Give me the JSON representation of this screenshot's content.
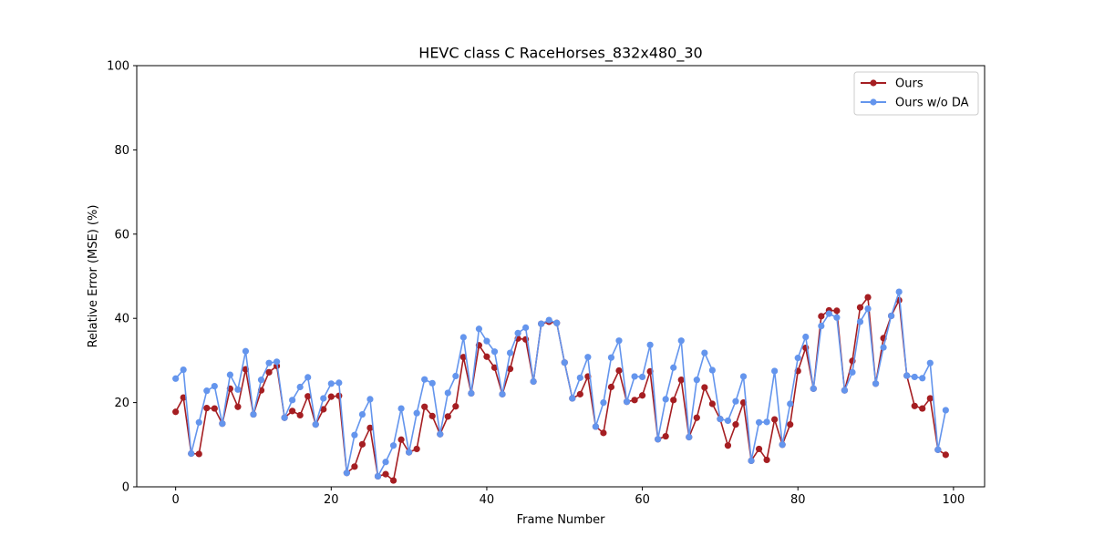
{
  "chart_data": {
    "type": "line",
    "title": "HEVC class C RaceHorses_832x480_30",
    "xlabel": "Frame Number",
    "ylabel": "Relative Error (MSE) (%)",
    "xlim": [
      -5,
      104
    ],
    "ylim": [
      0,
      100
    ],
    "xticks": [
      0,
      20,
      40,
      60,
      80,
      100
    ],
    "yticks": [
      0,
      20,
      40,
      60,
      80,
      100
    ],
    "xtick_labels": [
      "0",
      "20",
      "40",
      "60",
      "80",
      "100"
    ],
    "ytick_labels": [
      "0",
      "20",
      "40",
      "60",
      "80",
      "100"
    ],
    "grid": false,
    "legend_position": "top-right",
    "x": [
      0,
      1,
      2,
      3,
      4,
      5,
      6,
      7,
      8,
      9,
      10,
      11,
      12,
      13,
      14,
      15,
      16,
      17,
      18,
      19,
      20,
      21,
      22,
      23,
      24,
      25,
      26,
      27,
      28,
      29,
      30,
      31,
      32,
      33,
      34,
      35,
      36,
      37,
      38,
      39,
      40,
      41,
      42,
      43,
      44,
      45,
      46,
      47,
      48,
      49,
      50,
      51,
      52,
      53,
      54,
      55,
      56,
      57,
      58,
      59,
      60,
      61,
      62,
      63,
      64,
      65,
      66,
      67,
      68,
      69,
      70,
      71,
      72,
      73,
      74,
      75,
      76,
      77,
      78,
      79,
      80,
      81,
      82,
      83,
      84,
      85,
      86,
      87,
      88,
      89,
      90,
      91,
      92,
      93,
      94,
      95,
      96,
      97,
      98,
      99
    ],
    "series": [
      {
        "name": "Ours",
        "color": "#a51e22",
        "values": [
          17.8,
          21.2,
          7.9,
          7.8,
          18.7,
          18.6,
          15.0,
          23.3,
          19.0,
          27.9,
          17.2,
          22.9,
          27.2,
          28.7,
          16.4,
          18.0,
          17.0,
          21.5,
          14.8,
          18.4,
          21.4,
          21.6,
          3.3,
          4.8,
          10.1,
          14.0,
          2.5,
          3.0,
          1.5,
          11.2,
          8.2,
          9.0,
          19.0,
          16.8,
          12.5,
          16.7,
          19.1,
          30.8,
          22.2,
          33.6,
          30.9,
          28.3,
          22.0,
          28.0,
          35.2,
          35.0,
          25.0,
          38.7,
          39.2,
          38.9,
          29.5,
          21.0,
          22.0,
          26.2,
          14.3,
          12.8,
          23.7,
          27.6,
          20.2,
          20.6,
          21.7,
          27.4,
          11.3,
          12.0,
          20.6,
          25.4,
          11.8,
          16.4,
          23.6,
          19.7,
          16.1,
          9.8,
          14.8,
          20.0,
          6.2,
          9.0,
          6.4,
          16.0,
          10.0,
          14.8,
          27.5,
          33.0,
          23.3,
          40.5,
          41.9,
          41.8,
          22.9,
          29.9,
          42.6,
          45.0,
          24.5,
          35.3,
          40.6,
          44.3,
          26.4,
          19.2,
          18.6,
          21.0,
          8.8,
          7.6
        ]
      },
      {
        "name": "Ours w/o DA",
        "color": "#6495ed",
        "values": [
          25.7,
          27.8,
          7.9,
          15.3,
          22.8,
          23.9,
          15.0,
          26.6,
          23.1,
          32.2,
          17.2,
          25.4,
          29.4,
          29.7,
          16.4,
          20.6,
          23.7,
          26.0,
          14.8,
          21.0,
          24.5,
          24.7,
          3.3,
          12.3,
          17.2,
          20.8,
          2.5,
          5.9,
          9.8,
          18.6,
          8.2,
          17.5,
          25.5,
          24.6,
          12.5,
          22.3,
          26.3,
          35.5,
          22.2,
          37.5,
          34.6,
          32.1,
          22.0,
          31.8,
          36.5,
          37.8,
          25.0,
          38.7,
          39.6,
          38.9,
          29.5,
          21.0,
          25.9,
          30.8,
          14.3,
          20.0,
          30.7,
          34.7,
          20.2,
          26.2,
          26.1,
          33.7,
          11.3,
          20.8,
          28.3,
          34.7,
          11.8,
          25.4,
          31.8,
          27.7,
          16.1,
          15.7,
          20.3,
          26.2,
          6.2,
          15.3,
          15.4,
          27.5,
          10.0,
          19.7,
          30.6,
          35.6,
          23.3,
          38.2,
          41.1,
          40.2,
          22.9,
          27.2,
          39.2,
          42.3,
          24.5,
          33.1,
          40.6,
          46.3,
          26.4,
          26.1,
          25.8,
          29.4,
          8.8,
          18.2
        ]
      }
    ]
  }
}
